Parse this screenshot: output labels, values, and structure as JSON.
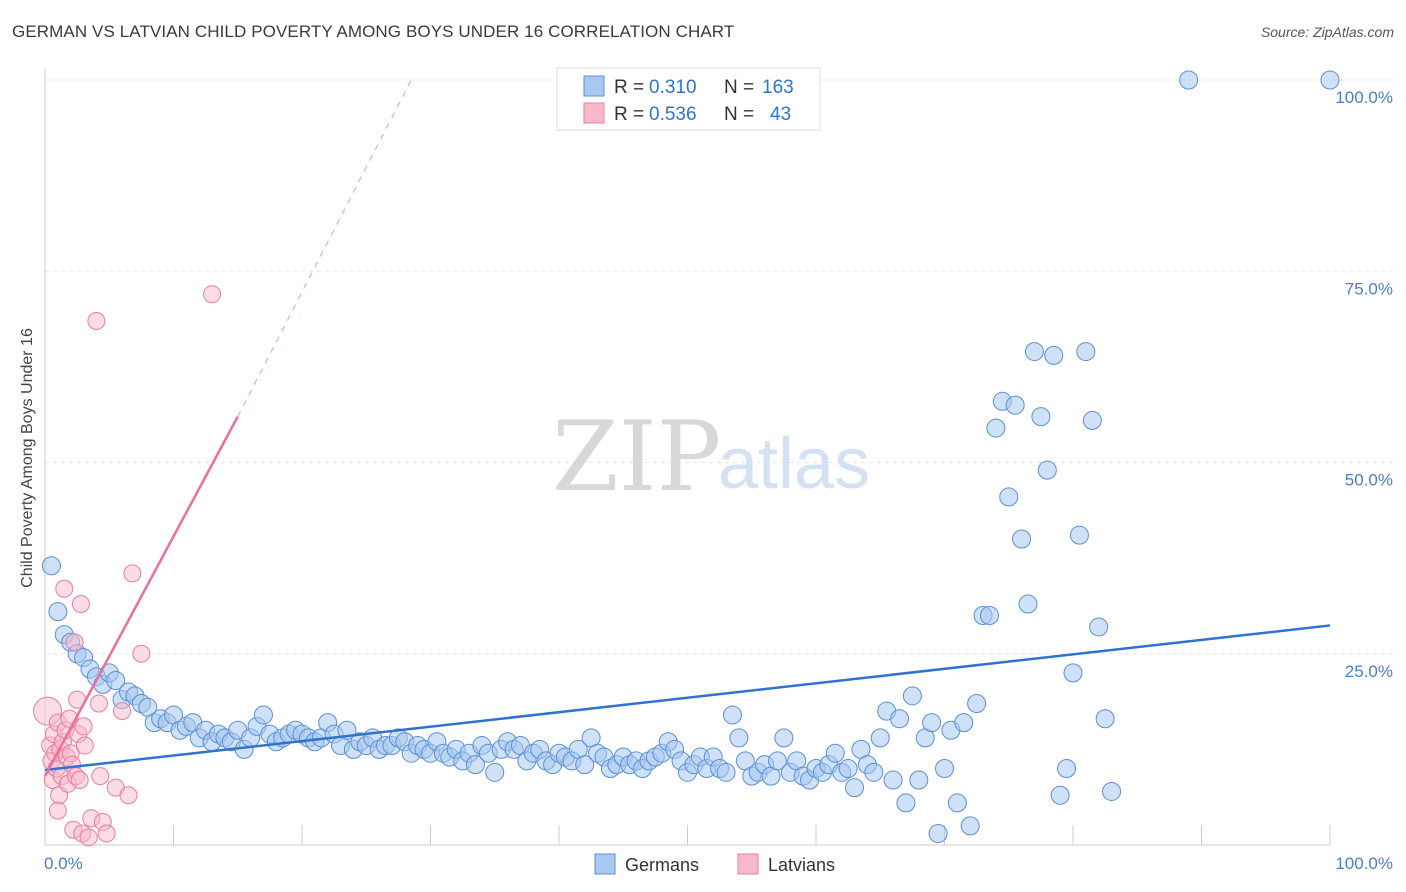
{
  "title": "GERMAN VS LATVIAN CHILD POVERTY AMONG BOYS UNDER 16 CORRELATION CHART",
  "source": "Source: ZipAtlas.com",
  "watermark": {
    "zip": "ZIP",
    "atlas": "atlas"
  },
  "colors": {
    "german_fill": "#a8c8f0",
    "german_stroke": "#5b8fd6",
    "german_line": "#2f72d0",
    "latvian_fill": "#f7b8cb",
    "latvian_stroke": "#e87fa0",
    "latvian_line": "#e8709a",
    "tick_text": "#4a7fc9",
    "grid": "#e6e6e6"
  },
  "legend": {
    "rows": [
      {
        "r_label": "R =",
        "r_value": "0.310",
        "n_label": "N =",
        "n_value": "163"
      },
      {
        "r_label": "R =",
        "r_value": "0.536",
        "n_label": "N =",
        "n_value": "43"
      }
    ]
  },
  "chart_data": {
    "type": "scatter",
    "title": "GERMAN VS LATVIAN CHILD POVERTY AMONG BOYS UNDER 16 CORRELATION CHART",
    "xlabel": "",
    "ylabel": "Child Poverty Among Boys Under 16",
    "xlim": [
      0,
      100
    ],
    "ylim": [
      0,
      100
    ],
    "x_tick_labels": [
      "0.0%",
      "100.0%"
    ],
    "y_tick_labels": [
      "100.0%",
      "75.0%",
      "50.0%",
      "25.0%"
    ],
    "y_ticks": [
      100,
      75,
      50,
      25
    ],
    "grid": true,
    "legend_position": "top-center",
    "series": [
      {
        "name": "Germans",
        "r": 0.31,
        "n": 163,
        "trend": {
          "x0": 0,
          "y0": 9.8,
          "x1": 100,
          "y1": 28.7
        },
        "points": [
          [
            0.5,
            36.5
          ],
          [
            1.0,
            30.5
          ],
          [
            1.5,
            27.5
          ],
          [
            2.0,
            26.5
          ],
          [
            2.5,
            25.0
          ],
          [
            3.0,
            24.5
          ],
          [
            3.5,
            23.0
          ],
          [
            4.0,
            22.0
          ],
          [
            4.5,
            21.0
          ],
          [
            5.0,
            22.5
          ],
          [
            5.5,
            21.5
          ],
          [
            6.0,
            19.0
          ],
          [
            6.5,
            20.0
          ],
          [
            7.0,
            19.5
          ],
          [
            7.5,
            18.5
          ],
          [
            8.0,
            18.0
          ],
          [
            8.5,
            16.0
          ],
          [
            9.0,
            16.5
          ],
          [
            9.5,
            16.0
          ],
          [
            10.0,
            17.0
          ],
          [
            10.5,
            15.0
          ],
          [
            11.0,
            15.5
          ],
          [
            11.5,
            16.0
          ],
          [
            12.0,
            14.0
          ],
          [
            12.5,
            15.0
          ],
          [
            13.0,
            13.5
          ],
          [
            13.5,
            14.5
          ],
          [
            14.0,
            14.0
          ],
          [
            14.5,
            13.5
          ],
          [
            15.0,
            15.0
          ],
          [
            15.5,
            12.5
          ],
          [
            16.0,
            14.0
          ],
          [
            16.5,
            15.5
          ],
          [
            17.0,
            17.0
          ],
          [
            17.5,
            14.5
          ],
          [
            18.0,
            13.5
          ],
          [
            18.5,
            14.0
          ],
          [
            19.0,
            14.5
          ],
          [
            19.5,
            15.0
          ],
          [
            20.0,
            14.5
          ],
          [
            20.5,
            14.0
          ],
          [
            21.0,
            13.5
          ],
          [
            21.5,
            14.0
          ],
          [
            22.0,
            16.0
          ],
          [
            22.5,
            14.5
          ],
          [
            23.0,
            13.0
          ],
          [
            23.5,
            15.0
          ],
          [
            24.0,
            12.5
          ],
          [
            24.5,
            13.5
          ],
          [
            25.0,
            13.0
          ],
          [
            25.5,
            14.0
          ],
          [
            26.0,
            12.5
          ],
          [
            26.5,
            13.0
          ],
          [
            27.0,
            13.0
          ],
          [
            27.5,
            14.0
          ],
          [
            28.0,
            13.5
          ],
          [
            28.5,
            12.0
          ],
          [
            29.0,
            13.0
          ],
          [
            29.5,
            12.5
          ],
          [
            30.0,
            12.0
          ],
          [
            30.5,
            13.5
          ],
          [
            31.0,
            12.0
          ],
          [
            31.5,
            11.5
          ],
          [
            32.0,
            12.5
          ],
          [
            32.5,
            11.0
          ],
          [
            33.0,
            12.0
          ],
          [
            33.5,
            10.5
          ],
          [
            34.0,
            13.0
          ],
          [
            34.5,
            12.0
          ],
          [
            35.0,
            9.5
          ],
          [
            35.5,
            12.5
          ],
          [
            36.0,
            13.5
          ],
          [
            36.5,
            12.5
          ],
          [
            37.0,
            13.0
          ],
          [
            37.5,
            11.0
          ],
          [
            38.0,
            12.0
          ],
          [
            38.5,
            12.5
          ],
          [
            39.0,
            11.0
          ],
          [
            39.5,
            10.5
          ],
          [
            40.0,
            12.0
          ],
          [
            40.5,
            11.5
          ],
          [
            41.0,
            11.0
          ],
          [
            41.5,
            12.5
          ],
          [
            42.0,
            10.5
          ],
          [
            42.5,
            14.0
          ],
          [
            43.0,
            12.0
          ],
          [
            43.5,
            11.5
          ],
          [
            44.0,
            10.0
          ],
          [
            44.5,
            10.5
          ],
          [
            45.0,
            11.5
          ],
          [
            45.5,
            10.5
          ],
          [
            46.0,
            11.0
          ],
          [
            46.5,
            10.0
          ],
          [
            47.0,
            11.0
          ],
          [
            47.5,
            11.5
          ],
          [
            48.0,
            12.0
          ],
          [
            48.5,
            13.5
          ],
          [
            49.0,
            12.5
          ],
          [
            49.5,
            11.0
          ],
          [
            50.0,
            9.5
          ],
          [
            50.5,
            10.5
          ],
          [
            51.0,
            11.5
          ],
          [
            51.5,
            10.0
          ],
          [
            52.0,
            11.5
          ],
          [
            52.5,
            10.0
          ],
          [
            53.0,
            9.5
          ],
          [
            53.5,
            17.0
          ],
          [
            54.0,
            14.0
          ],
          [
            54.5,
            11.0
          ],
          [
            55.0,
            9.0
          ],
          [
            55.5,
            9.5
          ],
          [
            56.0,
            10.5
          ],
          [
            56.5,
            9.0
          ],
          [
            57.0,
            11.0
          ],
          [
            57.5,
            14.0
          ],
          [
            58.0,
            9.5
          ],
          [
            58.5,
            11.0
          ],
          [
            59.0,
            9.0
          ],
          [
            59.5,
            8.5
          ],
          [
            60.0,
            10.0
          ],
          [
            60.5,
            9.5
          ],
          [
            61.0,
            10.5
          ],
          [
            61.5,
            12.0
          ],
          [
            62.0,
            9.5
          ],
          [
            62.5,
            10.0
          ],
          [
            63.0,
            7.5
          ],
          [
            63.5,
            12.5
          ],
          [
            64.0,
            10.5
          ],
          [
            64.5,
            9.5
          ],
          [
            65.0,
            14.0
          ],
          [
            65.5,
            17.5
          ],
          [
            66.0,
            8.5
          ],
          [
            66.5,
            16.5
          ],
          [
            67.0,
            5.5
          ],
          [
            67.5,
            19.5
          ],
          [
            68.0,
            8.5
          ],
          [
            68.5,
            14.0
          ],
          [
            69.0,
            16.0
          ],
          [
            69.5,
            1.5
          ],
          [
            70.0,
            10.0
          ],
          [
            70.5,
            15.0
          ],
          [
            71.0,
            5.5
          ],
          [
            71.5,
            16.0
          ],
          [
            72.0,
            2.5
          ],
          [
            72.5,
            18.5
          ],
          [
            73.0,
            30.0
          ],
          [
            73.5,
            30.0
          ],
          [
            74.0,
            54.5
          ],
          [
            74.5,
            58.0
          ],
          [
            75.0,
            45.5
          ],
          [
            75.5,
            57.5
          ],
          [
            76.0,
            40.0
          ],
          [
            76.5,
            31.5
          ],
          [
            77.0,
            64.5
          ],
          [
            77.5,
            56.0
          ],
          [
            78.0,
            49.0
          ],
          [
            78.5,
            64.0
          ],
          [
            79.0,
            6.5
          ],
          [
            79.5,
            10.0
          ],
          [
            80.0,
            22.5
          ],
          [
            80.5,
            40.5
          ],
          [
            81.0,
            64.5
          ],
          [
            81.5,
            55.5
          ],
          [
            82.0,
            28.5
          ],
          [
            82.5,
            16.5
          ],
          [
            83.0,
            7.0
          ],
          [
            89.0,
            100.0
          ],
          [
            100.0,
            100.0
          ]
        ]
      },
      {
        "name": "Latvians",
        "r": 0.536,
        "n": 43,
        "trend": {
          "x0": 0,
          "y0": 9.0,
          "x1": 15.0,
          "y1": 56.0,
          "dash_x1": 28.5,
          "dash_y1": 100.0
        },
        "points": [
          [
            0.2,
            17.5
          ],
          [
            0.4,
            13.0
          ],
          [
            0.5,
            11.0
          ],
          [
            0.6,
            8.5
          ],
          [
            0.7,
            14.5
          ],
          [
            0.8,
            12.0
          ],
          [
            0.9,
            10.0
          ],
          [
            1.0,
            16.0
          ],
          [
            1.1,
            6.5
          ],
          [
            1.2,
            12.5
          ],
          [
            1.3,
            9.0
          ],
          [
            1.4,
            13.5
          ],
          [
            1.5,
            33.5
          ],
          [
            1.6,
            15.0
          ],
          [
            1.7,
            11.5
          ],
          [
            1.8,
            8.0
          ],
          [
            1.9,
            16.5
          ],
          [
            2.0,
            12.0
          ],
          [
            2.1,
            10.5
          ],
          [
            2.2,
            2.0
          ],
          [
            2.3,
            26.5
          ],
          [
            2.4,
            9.0
          ],
          [
            2.5,
            19.0
          ],
          [
            2.6,
            14.5
          ],
          [
            2.7,
            8.5
          ],
          [
            2.8,
            31.5
          ],
          [
            2.9,
            1.5
          ],
          [
            3.0,
            15.5
          ],
          [
            3.1,
            13.0
          ],
          [
            3.4,
            1.0
          ],
          [
            3.6,
            3.5
          ],
          [
            4.0,
            68.5
          ],
          [
            4.2,
            18.5
          ],
          [
            4.3,
            9.0
          ],
          [
            4.5,
            3.0
          ],
          [
            4.8,
            1.5
          ],
          [
            5.5,
            7.5
          ],
          [
            6.0,
            17.5
          ],
          [
            6.5,
            6.5
          ],
          [
            6.8,
            35.5
          ],
          [
            7.5,
            25.0
          ],
          [
            13.0,
            72.0
          ],
          [
            1.0,
            4.5
          ]
        ]
      }
    ]
  },
  "bottom_legend": {
    "germans": "Germans",
    "latvians": "Latvians"
  }
}
